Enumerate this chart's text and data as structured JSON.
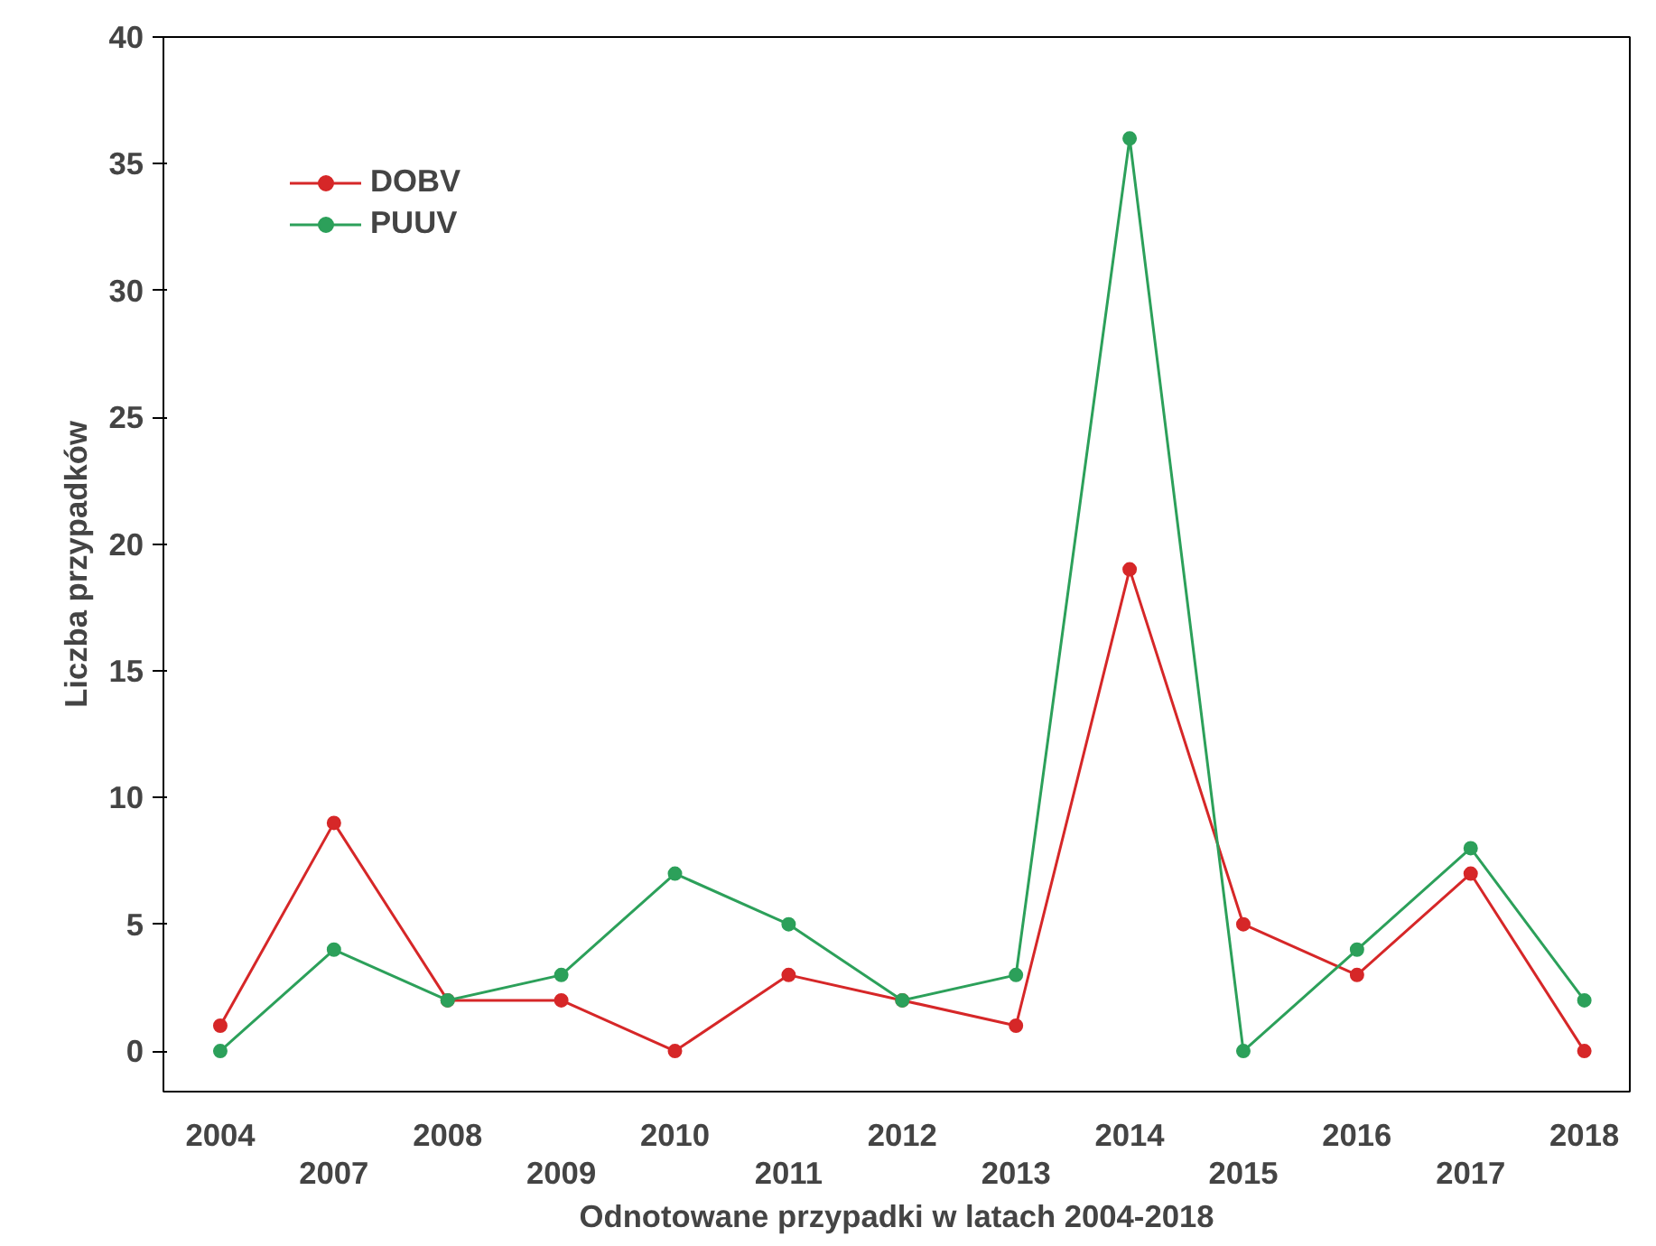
{
  "chart_data": {
    "type": "line",
    "xlabel": "Odnotowane przypadki w latach 2004-2018",
    "ylabel": "Liczba przypadków",
    "categories": [
      "2004",
      "2007",
      "2008",
      "2009",
      "2010",
      "2011",
      "2012",
      "2013",
      "2014",
      "2015",
      "2016",
      "2017",
      "2018"
    ],
    "series": [
      {
        "name": "DOBV",
        "color": "#d62728",
        "values": [
          1,
          9,
          2,
          2,
          0,
          3,
          2,
          1,
          19,
          5,
          3,
          7,
          0
        ]
      },
      {
        "name": "PUUV",
        "color": "#2ca05a",
        "values": [
          0,
          4,
          2,
          3,
          7,
          5,
          2,
          3,
          36,
          0,
          4,
          8,
          2
        ]
      }
    ],
    "ylim": [
      -1.6,
      40
    ],
    "yticks": [
      0,
      5,
      10,
      15,
      20,
      25,
      30,
      35,
      40
    ],
    "grid": false,
    "legend": "top left",
    "marker": "circle",
    "line_style": "solid"
  }
}
